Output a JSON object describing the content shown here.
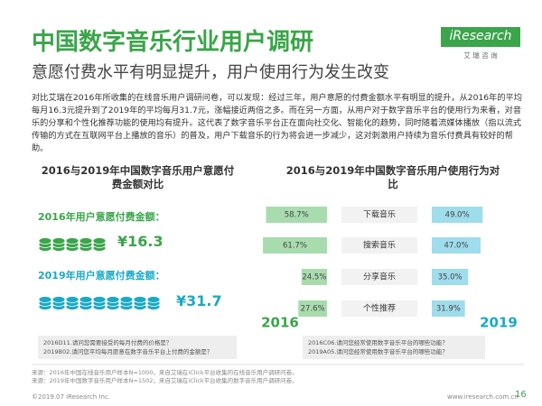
{
  "header": {
    "title": "中国数字音乐行业用户调研",
    "subtitle": "意愿付费水平有明显提升，用户使用行为发生改变",
    "logo": {
      "name": "iResearch",
      "tagline": "艾 瑞 咨 询"
    }
  },
  "body": {
    "text": "对比艾瑞在2016年所收集的在线音乐用户调研问卷，可以发现：经过三年，用户意愿的付费金额水平有明显的提升，从2016年的平均每月16.3元提升到了2019年的平均每月31.7元，涨幅接近两倍之多。而在另一方面，从用户对于数字音乐平台的使用行为来看，对音乐的分享和个性化推荐功能的使用均有提升。这代表了数字音乐平台正在面向社交化、智能化的趋势，同时随着流媒体播放（指以流式传输的方式在互联网平台上播放的音乐）的普及，用户下载音乐的行为将会进一步减少，这对刺激用户持续为音乐付费具有较好的帮助。"
  },
  "payment_panel": {
    "title": "2016与2019年中国数字音乐用户意愿付费金额对比",
    "items": [
      {
        "label": "2016年用户意愿付费金额：",
        "amount": "¥16.3"
      },
      {
        "label": "2019年用户意愿付费金额：",
        "amount": "¥31.7"
      }
    ],
    "notes": [
      "2016D11.请问您需要接受的每月付费的价格是？",
      "2019B02.请问您平均每月愿意在数字音乐平台上付费的金额是？"
    ]
  },
  "behavior_panel": {
    "title": "2016与2019年中国数字音乐用户使用行为对比",
    "categories": [
      "下载音乐",
      "搜索音乐",
      "分享音乐",
      "个性推荐"
    ],
    "series": [
      {
        "name": "2016",
        "color": "#a8dcae",
        "values": [
          58.7,
          61.7,
          24.5,
          27.6
        ],
        "value_labels": [
          "58.7%",
          "61.7%",
          "24.5%",
          "27.6%"
        ]
      },
      {
        "name": "2019",
        "color": "#9fdcec",
        "values": [
          49.0,
          47.0,
          35.0,
          31.9
        ],
        "value_labels": [
          "49.0%",
          "47.0%",
          "35.0%",
          "31.9%"
        ]
      }
    ],
    "notes": [
      "2016C06.请问您经常使用数字音乐平台的哪些功能？",
      "2019A05.请问您经常使用数字音乐平台的哪些功能？"
    ]
  },
  "footer": {
    "sources": [
      "来源：2016年中国在线音乐用户样本N=1000，来自艾瑞在iClick平台收集的在线音乐用户调研问卷。",
      "来源：2019年中国数字音乐用户样本N=1502，来自艾瑞在iClick平台收集的数字音乐用户调研问卷。"
    ],
    "copyright": "©2019.07 iResearch Inc.",
    "website": "www.iresearch.com.cn",
    "page": "16"
  }
}
